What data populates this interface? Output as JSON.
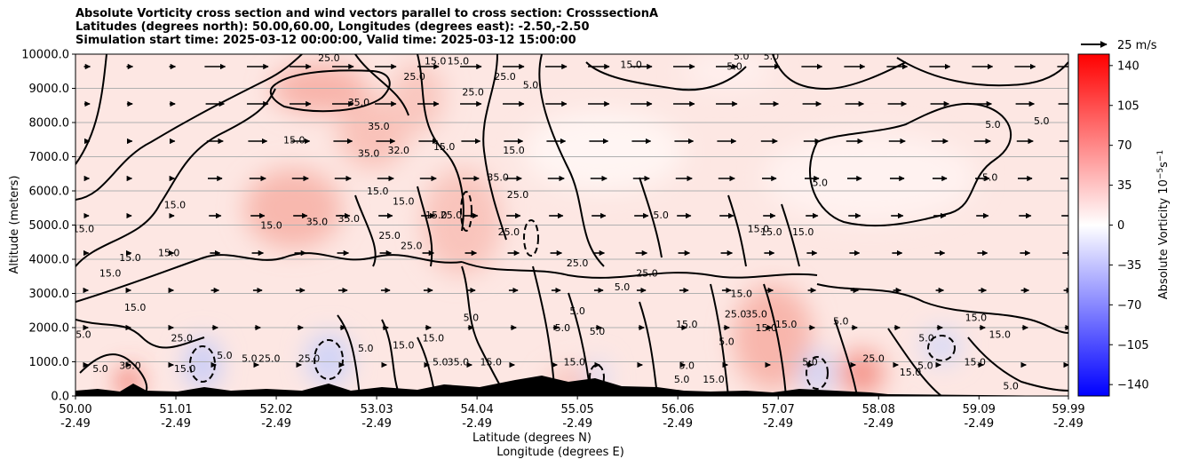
{
  "chart_data": {
    "type": "heatmap",
    "title_lines": [
      "Absolute Vorticity cross section and wind vectors parallel to cross section: CrosssectionA",
      "Latitudes (degrees north): 50.00,60.00, Longitudes (degrees east): -2.50,-2.50",
      "Simulation start time: 2025-03-12 00:00:00, Valid time: 2025-03-12 15:00:00"
    ],
    "xlabel_lat": "Latitude (degrees N)",
    "xlabel_lon": "Longitude (degrees E)",
    "ylabel": "Altitude (meters)",
    "x_ticks_lat": [
      "50.00",
      "51.01",
      "52.02",
      "53.03",
      "54.04",
      "55.05",
      "56.06",
      "57.07",
      "58.08",
      "59.09",
      "59.99"
    ],
    "x_ticks_lon": [
      "-2.49",
      "-2.49",
      "-2.49",
      "-2.49",
      "-2.49",
      "-2.49",
      "-2.49",
      "-2.49",
      "-2.49",
      "-2.49",
      "-2.49"
    ],
    "x_range": [
      50.0,
      59.99
    ],
    "y_ticks": [
      "0.0",
      "1000.0",
      "2000.0",
      "3000.0",
      "4000.0",
      "5000.0",
      "6000.0",
      "7000.0",
      "8000.0",
      "9000.0",
      "10000.0"
    ],
    "y_range": [
      0,
      10000
    ],
    "grid": "horizontal",
    "colorbar": {
      "label": "Absolute Vorticity 10^-5 s^-1",
      "ticks": [
        "140",
        "105",
        "70",
        "35",
        "0",
        "−35",
        "−70",
        "−105",
        "−140"
      ],
      "range": [
        -150,
        150
      ],
      "colors": [
        "#0000ff",
        "#ffffff",
        "#ff0000"
      ]
    },
    "quiver_key": "25 m/s",
    "contour_labels": [
      {
        "text": "25.0",
        "lat": 52.55,
        "alt": 9900
      },
      {
        "text": "15.0",
        "lat": 53.62,
        "alt": 9800
      },
      {
        "text": "15.0",
        "lat": 53.85,
        "alt": 9800
      },
      {
        "text": "25.0",
        "lat": 53.41,
        "alt": 9350
      },
      {
        "text": "25.0",
        "lat": 54.0,
        "alt": 8900
      },
      {
        "text": "25.0",
        "lat": 54.32,
        "alt": 9350
      },
      {
        "text": "5.0",
        "lat": 54.58,
        "alt": 9100
      },
      {
        "text": "15.0",
        "lat": 55.59,
        "alt": 9700
      },
      {
        "text": "5.0",
        "lat": 56.63,
        "alt": 9650
      },
      {
        "text": "5.0",
        "lat": 56.7,
        "alt": 9950
      },
      {
        "text": "5.0",
        "lat": 57.0,
        "alt": 9950
      },
      {
        "text": "5.0",
        "lat": 59.23,
        "alt": 7950
      },
      {
        "text": "5.0",
        "lat": 59.72,
        "alt": 8050
      },
      {
        "text": "5.0",
        "lat": 59.2,
        "alt": 6400
      },
      {
        "text": "5.0",
        "lat": 57.49,
        "alt": 6250
      },
      {
        "text": "35.0",
        "lat": 52.85,
        "alt": 8600
      },
      {
        "text": "35.0",
        "lat": 53.05,
        "alt": 7900
      },
      {
        "text": "35.0",
        "lat": 52.95,
        "alt": 7100
      },
      {
        "text": "32.0",
        "lat": 53.25,
        "alt": 7200
      },
      {
        "text": "35.0",
        "lat": 54.25,
        "alt": 6400
      },
      {
        "text": "25.0",
        "lat": 54.45,
        "alt": 5900
      },
      {
        "text": "15.0",
        "lat": 53.71,
        "alt": 7300
      },
      {
        "text": "15.0",
        "lat": 54.41,
        "alt": 7200
      },
      {
        "text": "15.0",
        "lat": 52.2,
        "alt": 7500
      },
      {
        "text": "15.0",
        "lat": 51.97,
        "alt": 5000
      },
      {
        "text": "15.0",
        "lat": 51.0,
        "alt": 5600
      },
      {
        "text": "15.0",
        "lat": 53.04,
        "alt": 6000
      },
      {
        "text": "15.0",
        "lat": 53.3,
        "alt": 5700
      },
      {
        "text": "15.0",
        "lat": 53.63,
        "alt": 5300
      },
      {
        "text": "35.0",
        "lat": 52.43,
        "alt": 5100
      },
      {
        "text": "35.0",
        "lat": 52.75,
        "alt": 5200
      },
      {
        "text": "25.0",
        "lat": 53.16,
        "alt": 4700
      },
      {
        "text": "25.0",
        "lat": 53.38,
        "alt": 4400
      },
      {
        "text": "25.0",
        "lat": 53.78,
        "alt": 5300
      },
      {
        "text": "25.0",
        "lat": 54.36,
        "alt": 4800
      },
      {
        "text": "15.0",
        "lat": 50.94,
        "alt": 4200
      },
      {
        "text": "15.0",
        "lat": 50.08,
        "alt": 4900
      },
      {
        "text": "15.0",
        "lat": 50.55,
        "alt": 4050
      },
      {
        "text": "15.0",
        "lat": 50.35,
        "alt": 3600
      },
      {
        "text": "15.0",
        "lat": 50.6,
        "alt": 2600
      },
      {
        "text": "5.0",
        "lat": 50.08,
        "alt": 1800
      },
      {
        "text": "25.0",
        "lat": 51.07,
        "alt": 1700
      },
      {
        "text": "15.0",
        "lat": 51.1,
        "alt": 800
      },
      {
        "text": "25.0",
        "lat": 52.35,
        "alt": 1100
      },
      {
        "text": "35.0",
        "lat": 53.85,
        "alt": 1000
      },
      {
        "text": "15.0",
        "lat": 54.18,
        "alt": 1000
      },
      {
        "text": "5.0",
        "lat": 53.98,
        "alt": 2300
      },
      {
        "text": "5.0",
        "lat": 54.9,
        "alt": 2000
      },
      {
        "text": "5.0",
        "lat": 55.05,
        "alt": 2500
      },
      {
        "text": "5.0",
        "lat": 55.25,
        "alt": 1900
      },
      {
        "text": "5.0",
        "lat": 55.5,
        "alt": 3200
      },
      {
        "text": "25.0",
        "lat": 55.05,
        "alt": 3900
      },
      {
        "text": "25.0",
        "lat": 55.75,
        "alt": 3600
      },
      {
        "text": "5.0",
        "lat": 55.89,
        "alt": 5300
      },
      {
        "text": "5.0",
        "lat": 56.55,
        "alt": 1600
      },
      {
        "text": "15.0",
        "lat": 56.7,
        "alt": 3000
      },
      {
        "text": "15.0",
        "lat": 56.15,
        "alt": 2100
      },
      {
        "text": "25.0",
        "lat": 56.64,
        "alt": 2400
      },
      {
        "text": "35.0",
        "lat": 56.85,
        "alt": 2400
      },
      {
        "text": "15.0",
        "lat": 56.95,
        "alt": 2000
      },
      {
        "text": "15.0",
        "lat": 57.15,
        "alt": 2100
      },
      {
        "text": "15.0",
        "lat": 57.32,
        "alt": 4800
      },
      {
        "text": "15.0",
        "lat": 57.0,
        "alt": 4800
      },
      {
        "text": "15.0",
        "lat": 56.87,
        "alt": 4900
      },
      {
        "text": "5.0",
        "lat": 57.7,
        "alt": 2200
      },
      {
        "text": "25.0",
        "lat": 58.03,
        "alt": 1100
      },
      {
        "text": "15.0",
        "lat": 59.06,
        "alt": 2300
      },
      {
        "text": "15.0",
        "lat": 59.3,
        "alt": 1800
      },
      {
        "text": "5.0",
        "lat": 58.55,
        "alt": 900
      },
      {
        "text": "5.0",
        "lat": 58.56,
        "alt": 1700
      },
      {
        "text": "15.0",
        "lat": 59.05,
        "alt": 1000
      },
      {
        "text": "5.0",
        "lat": 59.41,
        "alt": 300
      },
      {
        "text": "15.0",
        "lat": 58.4,
        "alt": 700
      },
      {
        "text": "5.0",
        "lat": 56.1,
        "alt": 500
      },
      {
        "text": "15.0",
        "lat": 56.42,
        "alt": 500
      },
      {
        "text": "5.0",
        "lat": 57.39,
        "alt": 1000
      },
      {
        "text": "5.0",
        "lat": 50.25,
        "alt": 800
      },
      {
        "text": "35.0",
        "lat": 50.55,
        "alt": 900
      },
      {
        "text": "5.0",
        "lat": 51.75,
        "alt": 1100
      },
      {
        "text": "5.0",
        "lat": 51.5,
        "alt": 1200
      },
      {
        "text": "5.0",
        "lat": 53.67,
        "alt": 1000
      },
      {
        "text": "15.0",
        "lat": 55.02,
        "alt": 1000
      },
      {
        "text": "5.0",
        "lat": 56.15,
        "alt": 900
      },
      {
        "text": "15.0",
        "lat": 53.3,
        "alt": 1500
      },
      {
        "text": "15.0",
        "lat": 53.6,
        "alt": 1700
      },
      {
        "text": "5.0",
        "lat": 52.92,
        "alt": 1400
      },
      {
        "text": "25.0",
        "lat": 51.95,
        "alt": 1100
      }
    ]
  }
}
